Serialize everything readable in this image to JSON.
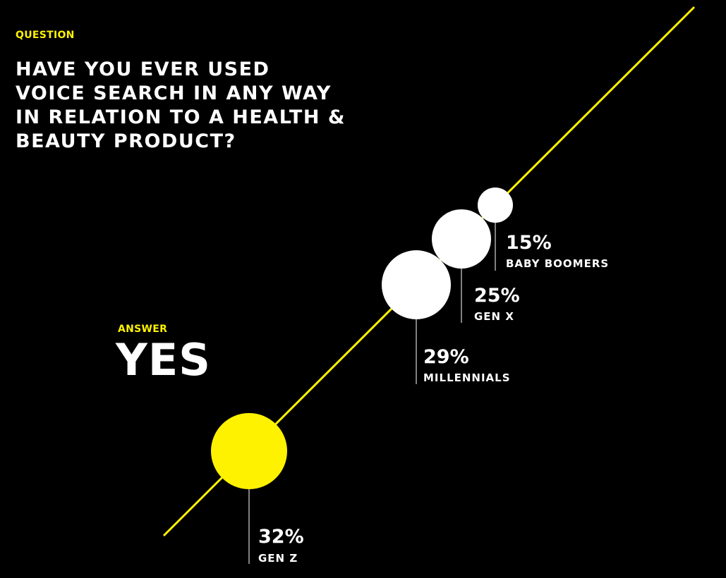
{
  "colors": {
    "background": "#000000",
    "accent": "#FFF200",
    "bubble": "#FFFFFF",
    "text": "#FFFFFF"
  },
  "question": {
    "label": "QUESTION",
    "title": "HAVE YOU EVER USED VOICE SEARCH IN ANY WAY IN RELATION TO A HEALTH & BEAUTY PRODUCT?"
  },
  "answer": {
    "label": "ANSWER",
    "value": "YES"
  },
  "chart_data": {
    "type": "scatter",
    "encoding": "bubble",
    "unit": "%",
    "categories": [
      "GEN Z",
      "MILLENNIALS",
      "GEN X",
      "BABY BOOMERS"
    ],
    "values": [
      32,
      29,
      25,
      15
    ],
    "highlight": "GEN Z",
    "grid": false,
    "legend": "none"
  }
}
